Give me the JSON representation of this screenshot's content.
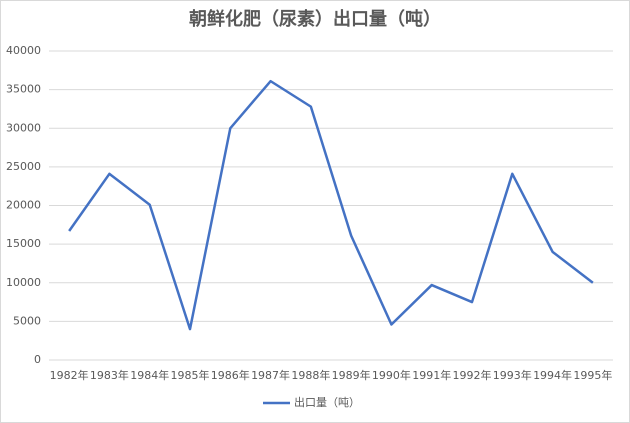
{
  "chart_data": {
    "type": "line",
    "title": "朝鲜化肥（尿素）出口量（吨）",
    "categories": [
      "1982年",
      "1983年",
      "1984年",
      "1985年",
      "1986年",
      "1987年",
      "1988年",
      "1989年",
      "1990年",
      "1991年",
      "1992年",
      "1993年",
      "1994年",
      "1995年"
    ],
    "series": [
      {
        "name": "出口量（吨）",
        "color": "#4472c4",
        "values": [
          16700,
          24100,
          20100,
          4000,
          30000,
          36100,
          32800,
          16100,
          4600,
          9700,
          7500,
          24100,
          14000,
          10000
        ]
      }
    ],
    "ylim": [
      0,
      40000
    ],
    "yticks": [
      0,
      5000,
      10000,
      15000,
      20000,
      25000,
      30000,
      35000,
      40000
    ],
    "grid": true,
    "legend": "bottom"
  }
}
